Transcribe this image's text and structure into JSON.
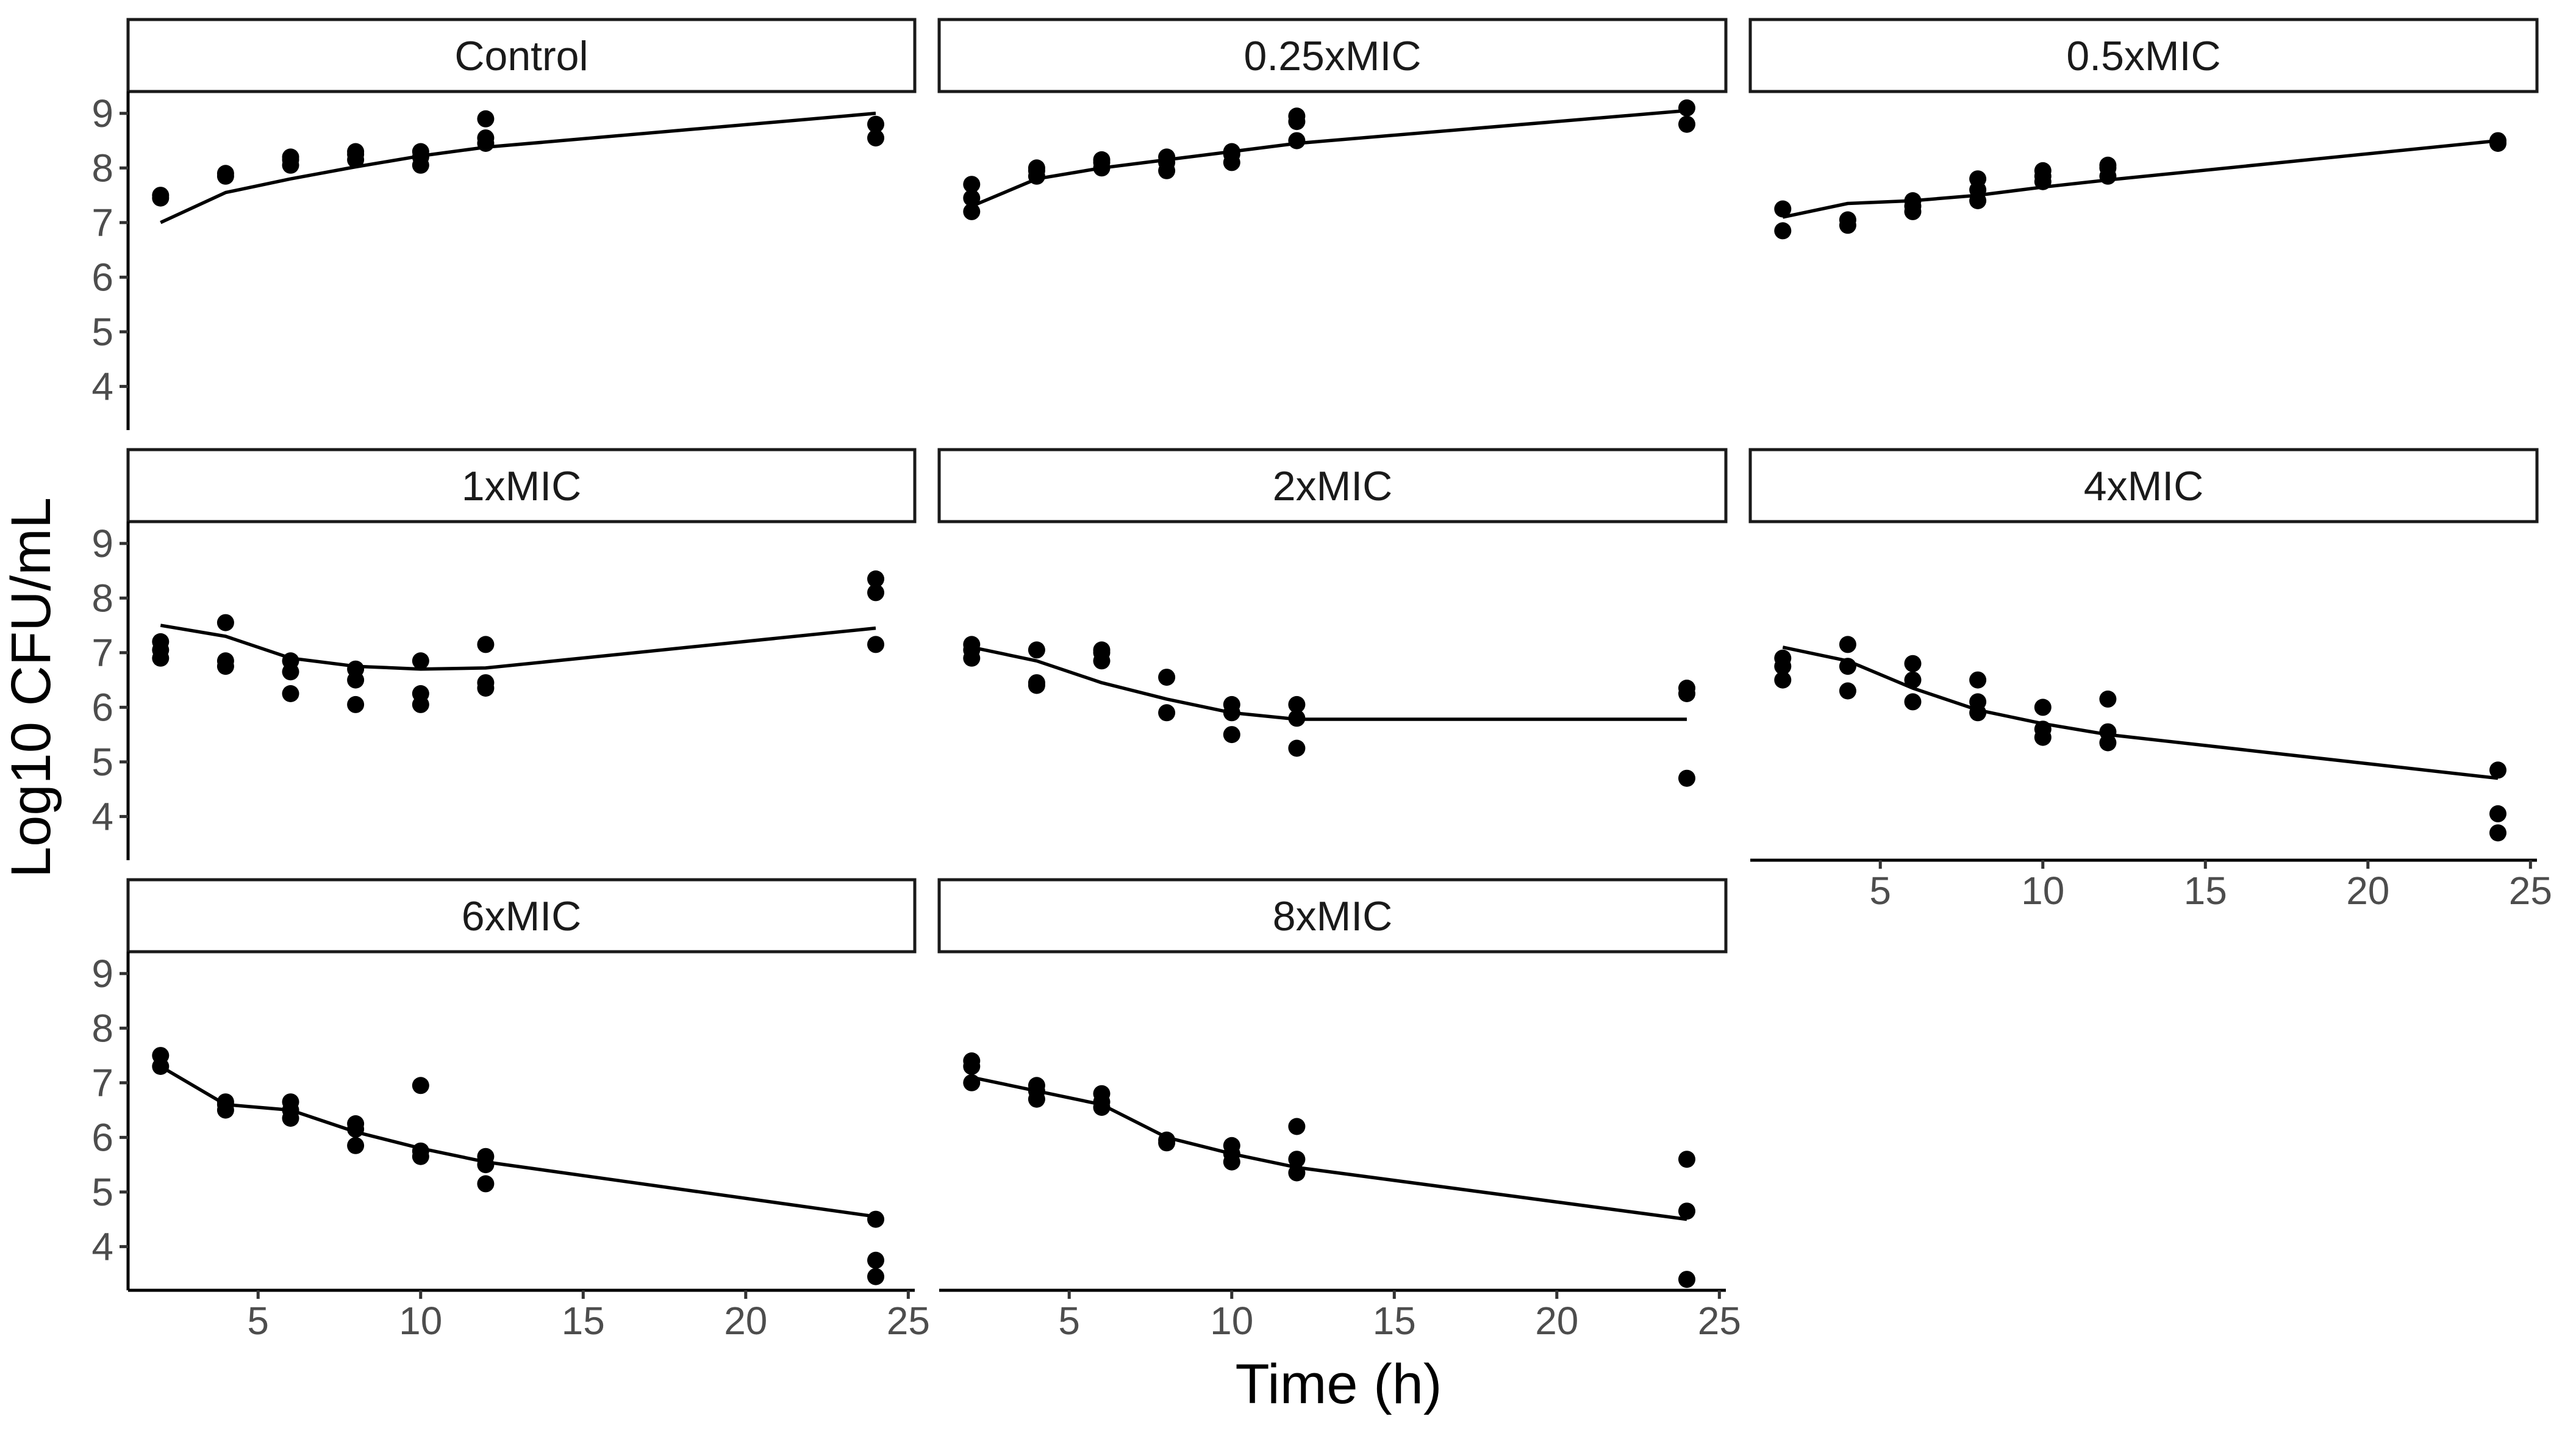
{
  "chart_data": {
    "type": "scatter",
    "facet_layout": "3 columns x 3 rows, y axis on left of each row, x axis at bottom of each column",
    "ylabel": "Log10 CFU/mL",
    "xlabel": "Time (h)",
    "xlim": [
      1,
      25.2
    ],
    "ylim": [
      3.2,
      9.4
    ],
    "x_ticks": [
      5,
      10,
      15,
      20,
      25
    ],
    "y_ticks": [
      4,
      5,
      6,
      7,
      8,
      9
    ],
    "grid": false,
    "legend": "none",
    "panels": [
      {
        "label": "Control",
        "points": [
          [
            2,
            7.45
          ],
          [
            2,
            7.5
          ],
          [
            4,
            7.85
          ],
          [
            4,
            7.9
          ],
          [
            6,
            8.05
          ],
          [
            6,
            8.15
          ],
          [
            6,
            8.2
          ],
          [
            8,
            8.15
          ],
          [
            8,
            8.25
          ],
          [
            8,
            8.3
          ],
          [
            10,
            8.05
          ],
          [
            10,
            8.2
          ],
          [
            10,
            8.3
          ],
          [
            12,
            8.45
          ],
          [
            12,
            8.55
          ],
          [
            12,
            8.9
          ],
          [
            24,
            8.55
          ],
          [
            24,
            8.8
          ]
        ],
        "fit": [
          [
            2,
            7.0
          ],
          [
            4,
            7.55
          ],
          [
            6,
            7.8
          ],
          [
            8,
            8.02
          ],
          [
            10,
            8.22
          ],
          [
            12,
            8.38
          ],
          [
            24,
            9.0
          ]
        ]
      },
      {
        "label": "0.25xMIC",
        "points": [
          [
            2,
            7.2
          ],
          [
            2,
            7.45
          ],
          [
            2,
            7.7
          ],
          [
            4,
            7.85
          ],
          [
            4,
            7.95
          ],
          [
            4,
            8.0
          ],
          [
            6,
            8.0
          ],
          [
            6,
            8.1
          ],
          [
            6,
            8.15
          ],
          [
            8,
            7.95
          ],
          [
            8,
            8.1
          ],
          [
            8,
            8.2
          ],
          [
            10,
            8.1
          ],
          [
            10,
            8.25
          ],
          [
            10,
            8.3
          ],
          [
            12,
            8.5
          ],
          [
            12,
            8.85
          ],
          [
            12,
            8.95
          ],
          [
            24,
            8.8
          ],
          [
            24,
            9.1
          ]
        ],
        "fit": [
          [
            2,
            7.3
          ],
          [
            4,
            7.8
          ],
          [
            6,
            8.0
          ],
          [
            8,
            8.15
          ],
          [
            10,
            8.3
          ],
          [
            12,
            8.45
          ],
          [
            24,
            9.05
          ]
        ]
      },
      {
        "label": "0.5xMIC",
        "points": [
          [
            2,
            6.85
          ],
          [
            2,
            7.25
          ],
          [
            4,
            6.95
          ],
          [
            4,
            7.05
          ],
          [
            6,
            7.2
          ],
          [
            6,
            7.3
          ],
          [
            6,
            7.4
          ],
          [
            8,
            7.4
          ],
          [
            8,
            7.6
          ],
          [
            8,
            7.8
          ],
          [
            10,
            7.75
          ],
          [
            10,
            7.85
          ],
          [
            10,
            7.95
          ],
          [
            12,
            7.85
          ],
          [
            12,
            8.0
          ],
          [
            12,
            8.05
          ],
          [
            24,
            8.45
          ],
          [
            24,
            8.5
          ]
        ],
        "fit": [
          [
            2,
            7.1
          ],
          [
            4,
            7.35
          ],
          [
            6,
            7.4
          ],
          [
            8,
            7.5
          ],
          [
            10,
            7.65
          ],
          [
            12,
            7.78
          ],
          [
            24,
            8.5
          ]
        ]
      },
      {
        "label": "1xMIC",
        "points": [
          [
            2,
            6.9
          ],
          [
            2,
            7.05
          ],
          [
            2,
            7.2
          ],
          [
            4,
            6.75
          ],
          [
            4,
            6.85
          ],
          [
            4,
            7.55
          ],
          [
            6,
            6.25
          ],
          [
            6,
            6.65
          ],
          [
            6,
            6.85
          ],
          [
            8,
            6.05
          ],
          [
            8,
            6.5
          ],
          [
            8,
            6.7
          ],
          [
            10,
            6.05
          ],
          [
            10,
            6.25
          ],
          [
            10,
            6.85
          ],
          [
            12,
            6.35
          ],
          [
            12,
            6.45
          ],
          [
            12,
            7.15
          ],
          [
            24,
            7.15
          ],
          [
            24,
            8.1
          ],
          [
            24,
            8.35
          ]
        ],
        "fit": [
          [
            2,
            7.5
          ],
          [
            4,
            7.3
          ],
          [
            6,
            6.9
          ],
          [
            8,
            6.75
          ],
          [
            10,
            6.7
          ],
          [
            12,
            6.72
          ],
          [
            24,
            7.45
          ]
        ]
      },
      {
        "label": "2xMIC",
        "points": [
          [
            2,
            6.9
          ],
          [
            2,
            7.05
          ],
          [
            2,
            7.15
          ],
          [
            4,
            6.4
          ],
          [
            4,
            6.45
          ],
          [
            4,
            7.05
          ],
          [
            6,
            6.85
          ],
          [
            6,
            7.0
          ],
          [
            6,
            7.05
          ],
          [
            8,
            5.9
          ],
          [
            8,
            6.55
          ],
          [
            10,
            5.5
          ],
          [
            10,
            5.9
          ],
          [
            10,
            6.05
          ],
          [
            12,
            5.25
          ],
          [
            12,
            5.8
          ],
          [
            12,
            6.05
          ],
          [
            24,
            4.7
          ],
          [
            24,
            6.25
          ],
          [
            24,
            6.35
          ]
        ],
        "fit": [
          [
            2,
            7.1
          ],
          [
            4,
            6.85
          ],
          [
            6,
            6.45
          ],
          [
            8,
            6.15
          ],
          [
            10,
            5.9
          ],
          [
            12,
            5.78
          ],
          [
            24,
            5.78
          ]
        ]
      },
      {
        "label": "4xMIC",
        "points": [
          [
            2,
            6.5
          ],
          [
            2,
            6.75
          ],
          [
            2,
            6.9
          ],
          [
            4,
            6.3
          ],
          [
            4,
            6.75
          ],
          [
            4,
            7.15
          ],
          [
            6,
            6.1
          ],
          [
            6,
            6.5
          ],
          [
            6,
            6.8
          ],
          [
            8,
            5.9
          ],
          [
            8,
            6.1
          ],
          [
            8,
            6.5
          ],
          [
            10,
            5.45
          ],
          [
            10,
            5.6
          ],
          [
            10,
            6.0
          ],
          [
            12,
            5.35
          ],
          [
            12,
            5.55
          ],
          [
            12,
            6.15
          ],
          [
            24,
            3.7
          ],
          [
            24,
            4.05
          ],
          [
            24,
            4.85
          ]
        ],
        "fit": [
          [
            2,
            7.1
          ],
          [
            4,
            6.85
          ],
          [
            6,
            6.35
          ],
          [
            8,
            5.95
          ],
          [
            10,
            5.7
          ],
          [
            12,
            5.5
          ],
          [
            24,
            4.7
          ]
        ]
      },
      {
        "label": "6xMIC",
        "points": [
          [
            2,
            7.3
          ],
          [
            2,
            7.5
          ],
          [
            4,
            6.5
          ],
          [
            4,
            6.6
          ],
          [
            4,
            6.65
          ],
          [
            6,
            6.35
          ],
          [
            6,
            6.5
          ],
          [
            6,
            6.65
          ],
          [
            8,
            5.85
          ],
          [
            8,
            6.15
          ],
          [
            8,
            6.25
          ],
          [
            10,
            5.65
          ],
          [
            10,
            5.75
          ],
          [
            10,
            6.95
          ],
          [
            12,
            5.15
          ],
          [
            12,
            5.5
          ],
          [
            12,
            5.65
          ],
          [
            24,
            3.45
          ],
          [
            24,
            3.75
          ],
          [
            24,
            4.5
          ]
        ],
        "fit": [
          [
            2,
            7.3
          ],
          [
            4,
            6.6
          ],
          [
            6,
            6.5
          ],
          [
            8,
            6.1
          ],
          [
            10,
            5.8
          ],
          [
            12,
            5.55
          ],
          [
            24,
            4.55
          ]
        ]
      },
      {
        "label": "8xMIC",
        "points": [
          [
            2,
            7.0
          ],
          [
            2,
            7.3
          ],
          [
            2,
            7.4
          ],
          [
            4,
            6.7
          ],
          [
            4,
            6.85
          ],
          [
            4,
            6.95
          ],
          [
            6,
            6.55
          ],
          [
            6,
            6.65
          ],
          [
            6,
            6.8
          ],
          [
            8,
            5.9
          ],
          [
            8,
            5.95
          ],
          [
            10,
            5.55
          ],
          [
            10,
            5.7
          ],
          [
            10,
            5.85
          ],
          [
            12,
            5.35
          ],
          [
            12,
            5.6
          ],
          [
            12,
            6.2
          ],
          [
            24,
            3.4
          ],
          [
            24,
            4.65
          ],
          [
            24,
            5.6
          ]
        ],
        "fit": [
          [
            2,
            7.1
          ],
          [
            4,
            6.85
          ],
          [
            6,
            6.6
          ],
          [
            8,
            6.0
          ],
          [
            10,
            5.7
          ],
          [
            12,
            5.45
          ],
          [
            24,
            4.5
          ]
        ]
      }
    ]
  }
}
